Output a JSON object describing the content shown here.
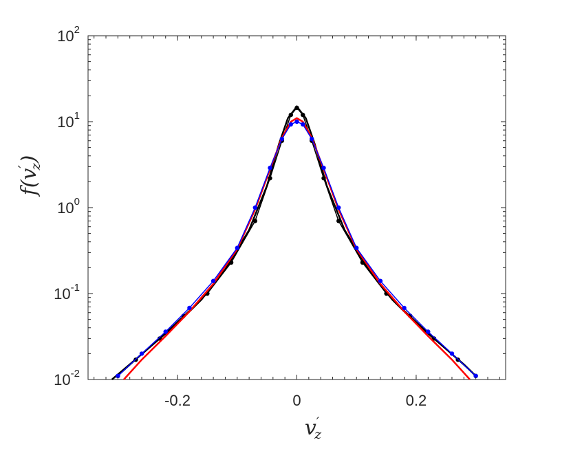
{
  "chart_data": {
    "type": "line",
    "xlim": [
      -0.35,
      0.35
    ],
    "ylim": [
      0.01,
      100
    ],
    "yscale": "log",
    "grid": false,
    "legend": "none",
    "xticks": [
      {
        "value": -0.2,
        "label": "-0.2"
      },
      {
        "value": 0,
        "label": "0"
      },
      {
        "value": 0.2,
        "label": "0.2"
      }
    ],
    "yticks": [
      {
        "value": 0.01,
        "base": "10",
        "exp": "-2"
      },
      {
        "value": 0.1,
        "base": "10",
        "exp": "-1"
      },
      {
        "value": 1,
        "base": "10",
        "exp": "0"
      },
      {
        "value": 10,
        "base": "10",
        "exp": "1"
      },
      {
        "value": 100,
        "base": "10",
        "exp": "2"
      }
    ],
    "xlabel": {
      "main": "v",
      "prime": "′",
      "sub": "z"
    },
    "ylabel": {
      "main": "f(v",
      "prime": "′",
      "sub": "z",
      "close": ")"
    },
    "series": [
      {
        "color": "#000000",
        "style": "line",
        "points": [
          [
            -0.31,
            0.01
          ],
          [
            -0.28,
            0.015
          ],
          [
            -0.24,
            0.026
          ],
          [
            -0.2,
            0.045
          ],
          [
            -0.16,
            0.085
          ],
          [
            -0.12,
            0.19
          ],
          [
            -0.08,
            0.55
          ],
          [
            -0.05,
            1.8
          ],
          [
            -0.03,
            5.5
          ],
          [
            -0.015,
            11
          ],
          [
            0,
            15
          ],
          [
            0.015,
            11
          ],
          [
            0.03,
            5.5
          ],
          [
            0.05,
            1.8
          ],
          [
            0.08,
            0.55
          ],
          [
            0.12,
            0.19
          ],
          [
            0.16,
            0.085
          ],
          [
            0.2,
            0.045
          ],
          [
            0.24,
            0.026
          ],
          [
            0.28,
            0.015
          ],
          [
            0.3,
            0.011
          ]
        ]
      },
      {
        "color": "#000000",
        "style": "dots",
        "points": [
          [
            -0.3,
            0.011
          ],
          [
            -0.27,
            0.017
          ],
          [
            -0.23,
            0.03
          ],
          [
            -0.19,
            0.055
          ],
          [
            -0.15,
            0.1
          ],
          [
            -0.11,
            0.23
          ],
          [
            -0.07,
            0.7
          ],
          [
            -0.045,
            2.2
          ],
          [
            -0.025,
            6
          ],
          [
            -0.01,
            12
          ],
          [
            0,
            14.5
          ],
          [
            0.01,
            12
          ],
          [
            0.025,
            6
          ],
          [
            0.045,
            2.2
          ],
          [
            0.07,
            0.7
          ],
          [
            0.11,
            0.23
          ],
          [
            0.15,
            0.1
          ],
          [
            0.19,
            0.055
          ],
          [
            0.23,
            0.03
          ],
          [
            0.27,
            0.017
          ],
          [
            0.3,
            0.011
          ]
        ]
      },
      {
        "color": "#ff0000",
        "style": "line",
        "points": [
          [
            -0.29,
            0.01
          ],
          [
            -0.26,
            0.017
          ],
          [
            -0.22,
            0.032
          ],
          [
            -0.18,
            0.062
          ],
          [
            -0.14,
            0.13
          ],
          [
            -0.1,
            0.33
          ],
          [
            -0.07,
            0.95
          ],
          [
            -0.045,
            2.8
          ],
          [
            -0.025,
            6.5
          ],
          [
            -0.01,
            10
          ],
          [
            0,
            11
          ],
          [
            0.01,
            10
          ],
          [
            0.025,
            6.5
          ],
          [
            0.045,
            2.8
          ],
          [
            0.07,
            0.95
          ],
          [
            0.1,
            0.33
          ],
          [
            0.14,
            0.13
          ],
          [
            0.18,
            0.062
          ],
          [
            0.22,
            0.032
          ],
          [
            0.26,
            0.017
          ],
          [
            0.29,
            0.01
          ]
        ]
      },
      {
        "color": "#0000ff",
        "style": "dots",
        "points": [
          [
            -0.3,
            0.011
          ],
          [
            -0.26,
            0.02
          ],
          [
            -0.22,
            0.036
          ],
          [
            -0.18,
            0.068
          ],
          [
            -0.14,
            0.14
          ],
          [
            -0.1,
            0.34
          ],
          [
            -0.07,
            1.0
          ],
          [
            -0.045,
            2.9
          ],
          [
            -0.025,
            6.3
          ],
          [
            -0.01,
            9.3
          ],
          [
            0,
            10
          ],
          [
            0.01,
            9.3
          ],
          [
            0.025,
            6.3
          ],
          [
            0.045,
            2.9
          ],
          [
            0.07,
            1.0
          ],
          [
            0.1,
            0.34
          ],
          [
            0.14,
            0.14
          ],
          [
            0.18,
            0.068
          ],
          [
            0.22,
            0.036
          ],
          [
            0.26,
            0.02
          ],
          [
            0.3,
            0.011
          ]
        ]
      }
    ]
  }
}
